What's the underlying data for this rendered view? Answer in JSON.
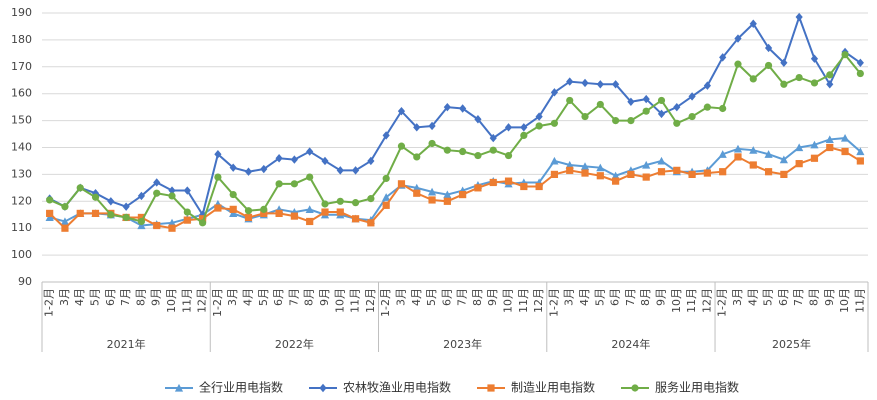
{
  "chart_data": {
    "type": "line",
    "groups": [
      {
        "label": "2021年",
        "categories": [
          "1-2月",
          "3月",
          "4月",
          "5月",
          "6月",
          "7月",
          "8月",
          "9月",
          "10月",
          "11月",
          "12月"
        ]
      },
      {
        "label": "2022年",
        "categories": [
          "1-2月",
          "3月",
          "4月",
          "5月",
          "6月",
          "7月",
          "8月",
          "9月",
          "10月",
          "11月",
          "12月"
        ]
      },
      {
        "label": "2023年",
        "categories": [
          "1-2月",
          "3月",
          "4月",
          "5月",
          "6月",
          "7月",
          "8月",
          "9月",
          "10月",
          "11月",
          "12月"
        ]
      },
      {
        "label": "2024年",
        "categories": [
          "1-2月",
          "3月",
          "4月",
          "5月",
          "6月",
          "7月",
          "8月",
          "9月",
          "10月",
          "11月",
          "12月"
        ]
      },
      {
        "label": "2025年",
        "categories": [
          "1-2月",
          "3月",
          "4月",
          "5月",
          "6月",
          "7月",
          "8月",
          "9月",
          "10月",
          "11月"
        ]
      }
    ],
    "series": [
      {
        "name": "全行业用电指数",
        "color": "#5b9bd5",
        "marker": "triangle",
        "values": [
          114,
          112.5,
          115.5,
          115.5,
          115,
          114,
          111,
          111.5,
          112,
          113.5,
          115,
          119,
          115.5,
          113.5,
          115,
          117,
          116,
          117,
          115,
          115,
          113.5,
          113,
          121.5,
          126,
          125,
          123.5,
          122.5,
          124,
          126,
          127.5,
          126.5,
          127,
          127,
          135,
          133.5,
          133,
          132.5,
          129.5,
          131.5,
          133.5,
          135,
          131,
          131,
          131.5,
          137.5,
          139.5,
          139,
          137.5,
          135.5,
          140,
          141,
          143,
          143.5,
          138.5
        ]
      },
      {
        "name": "农林牧渔业用电指数",
        "color": "#4472c4",
        "marker": "diamond",
        "values": [
          121,
          118,
          125,
          123,
          120,
          118,
          122,
          127,
          124,
          124,
          115,
          137.5,
          132.5,
          131,
          132,
          136,
          135.5,
          138.5,
          135,
          131.5,
          131.5,
          135,
          144.5,
          153.5,
          147.5,
          148,
          155,
          154.5,
          150.5,
          143.5,
          147.5,
          147.5,
          151.5,
          160.5,
          164.5,
          164,
          163.5,
          163.5,
          157,
          158,
          152.5,
          155,
          159,
          163,
          173.5,
          180.5,
          186,
          177,
          171.5,
          188.5,
          173,
          163.5,
          175.5,
          171.5
        ]
      },
      {
        "name": "制造业用电指数",
        "color": "#ed7d31",
        "marker": "square",
        "values": [
          115.5,
          110,
          115.5,
          115.5,
          115.5,
          114,
          114,
          111,
          110,
          113,
          113.5,
          117.5,
          117,
          114,
          115.5,
          115.5,
          114.5,
          112.5,
          116,
          116,
          113.5,
          112,
          118.5,
          126.5,
          123,
          120.5,
          120,
          122.5,
          125,
          127,
          127.5,
          125.5,
          125.5,
          130,
          131.5,
          130.5,
          129.5,
          127.5,
          130,
          129,
          131,
          131.5,
          130,
          130.5,
          131,
          136.5,
          133.5,
          131,
          130,
          134,
          136,
          140,
          138.5,
          135
        ]
      },
      {
        "name": "服务业用电指数",
        "color": "#70ad47",
        "marker": "circle",
        "values": [
          120.5,
          118,
          125,
          121.5,
          115,
          114,
          112.5,
          123,
          122,
          116,
          112,
          129,
          122.5,
          116.5,
          117,
          126.5,
          126.5,
          129,
          119,
          120,
          119.5,
          121,
          128.5,
          140.5,
          136.5,
          141.5,
          139,
          138.5,
          137,
          139,
          137,
          144.5,
          148,
          149,
          157.5,
          151.5,
          156,
          150,
          150,
          153.5,
          157.5,
          149,
          151.5,
          155,
          154.5,
          171,
          165.5,
          170.5,
          163.5,
          166,
          164,
          167,
          174.5,
          167.5
        ]
      }
    ],
    "ylim": [
      90,
      190
    ],
    "yticks": [
      90,
      100,
      110,
      120,
      130,
      140,
      150,
      160,
      170,
      180,
      190
    ],
    "grid": true,
    "legend": "bottom"
  }
}
